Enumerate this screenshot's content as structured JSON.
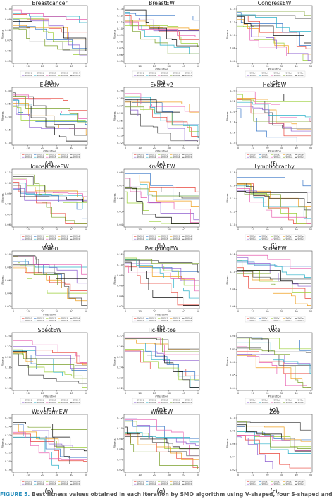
{
  "caption": {
    "label": "FIGURE 5.",
    "text": "Best fitness values obtained in each iteration by SMO algorithm using V-shaped, four S-shaped and four U-shaped"
  },
  "colors": [
    "#e8443a",
    "#3a78c8",
    "#9bcf3a",
    "#f0a020",
    "#4f4f4f",
    "#8e5fd0",
    "#2ab0c8",
    "#e860b0",
    "#7aa02a",
    "#111111"
  ],
  "chart_data": [
    {
      "title": "Breastcancer",
      "letter": "(a)",
      "type": "line",
      "xlabel": "",
      "ylabel": "Fitness",
      "xticks": [
        "0",
        "10",
        "20",
        "30",
        "40",
        "50"
      ],
      "yticks": [
        "0.05",
        "0.06",
        "0.07",
        "0.08",
        "0.09",
        "0.10"
      ],
      "legend": [
        "SMOv1",
        "SMOs1",
        "SMOs2",
        "SMOs3",
        "SMOs4",
        "SMOu1",
        "SMOu2",
        "SMOu3",
        "SMOu4",
        "SMOv2"
      ]
    },
    {
      "title": "BreastEW",
      "letter": "(b)",
      "type": "line",
      "xlabel": "#Iteration",
      "ylabel": "Fitness",
      "xticks": [
        "0",
        "10",
        "20",
        "30",
        "40",
        "50"
      ],
      "yticks": [
        "0.05",
        "0.06",
        "0.07",
        "0.08",
        "0.09",
        "0.10",
        "0.11",
        "0.12",
        "0.13"
      ],
      "legend": [
        "SMOv1",
        "SMOs1",
        "SMOs2",
        "SMOs3",
        "SMOs4",
        "SMOu1",
        "SMOu2",
        "SMOu3",
        "SMOu4",
        "SMOv2"
      ]
    },
    {
      "title": "CongressEW",
      "letter": "(c)",
      "type": "line",
      "xlabel": "#Iteration",
      "ylabel": "Fitness",
      "xticks": [
        "0",
        "10",
        "20",
        "30",
        "40",
        "50"
      ],
      "yticks": [
        "0.06",
        "0.08",
        "0.10",
        "0.12",
        "0.14"
      ],
      "legend": [
        "SMOv1",
        "SMOs1",
        "SMOs2",
        "SMOs3",
        "SMOs4",
        "SMOu1",
        "SMOu2",
        "SMOu3",
        "SMOu4",
        "SMOv2"
      ]
    },
    {
      "title": "Exactly",
      "letter": "(d)",
      "type": "line",
      "xlabel": "#Iteration",
      "ylabel": "Fitness",
      "xticks": [
        "0",
        "10",
        "20",
        "30",
        "40",
        "50"
      ],
      "yticks": [
        "0.10",
        "0.15",
        "0.20",
        "0.25",
        "0.30"
      ],
      "legend": [
        "SMOv1",
        "SMOs1",
        "SMOs2",
        "SMOs3",
        "SMOs4",
        "SMOu1",
        "SMOu2",
        "SMOu3",
        "SMOu4",
        "SMOv2"
      ]
    },
    {
      "title": "Exactly2",
      "letter": "(e)",
      "type": "line",
      "xlabel": "#Iteration",
      "ylabel": "Fitness",
      "xticks": [
        "0",
        "10",
        "20",
        "30",
        "40",
        "50"
      ],
      "yticks": [
        "0.22",
        "0.23",
        "0.24",
        "0.25",
        "0.26",
        "0.27",
        "0.28",
        "0.29"
      ],
      "legend": [
        "SMOv1",
        "SMOs1",
        "SMOs2",
        "SMOs3",
        "SMOs4",
        "SMOu1",
        "SMOu2",
        "SMOu3",
        "SMOu4",
        "SMOv2"
      ]
    },
    {
      "title": "HeartEW",
      "letter": "(f)",
      "type": "line",
      "xlabel": "#Iteration",
      "ylabel": "Fitness",
      "xticks": [
        "0",
        "10",
        "20",
        "30",
        "40",
        "50"
      ],
      "yticks": [
        "0.14",
        "0.16",
        "0.18",
        "0.20",
        "0.22",
        "0.24"
      ],
      "legend": [
        "SMOv1",
        "SMOs1",
        "SMOs2",
        "SMOs3",
        "SMOs4",
        "SMOu1",
        "SMOu2",
        "SMOu3",
        "SMOu4",
        "SMOv2"
      ]
    },
    {
      "title": "IonosphereEW",
      "letter": "(g)",
      "type": "line",
      "xlabel": "",
      "ylabel": "Fitness",
      "xticks": [
        "0",
        "10",
        "20",
        "30",
        "40",
        "50"
      ],
      "yticks": [
        "0.06",
        "0.07",
        "0.08",
        "0.09",
        "0.10",
        "0.11"
      ],
      "legend": [
        "SMOv1",
        "SMOs1",
        "SMOs2",
        "SMOs3",
        "SMOs4",
        "SMOu1",
        "SMOu2",
        "SMOu3",
        "SMOu4",
        "SMOv2"
      ]
    },
    {
      "title": "KrvskpEW",
      "letter": "(h)",
      "type": "line",
      "xlabel": "",
      "ylabel": "Fitness",
      "xticks": [
        "0",
        "10",
        "20",
        "30",
        "40",
        "50"
      ],
      "yticks": [
        "0.04",
        "0.05",
        "0.06",
        "0.07",
        "0.08"
      ],
      "legend": [
        "SMOv1",
        "SMOs1",
        "SMOs2",
        "SMOs3",
        "SMOs4",
        "SMOu1",
        "SMOu2",
        "SMOu3",
        "SMOu4",
        "SMOv2"
      ]
    },
    {
      "title": "Lymphography",
      "letter": "(i)",
      "type": "line",
      "xlabel": "",
      "ylabel": "Fitness",
      "xticks": [
        "0",
        "10",
        "20",
        "30",
        "40",
        "50"
      ],
      "yticks": [
        "0.10",
        "0.12",
        "0.14",
        "0.16",
        "0.18"
      ],
      "legend": [
        "SMOv1",
        "SMOs1",
        "SMOs2",
        "SMOs3",
        "SMOs4",
        "SMOu1",
        "SMOu2",
        "SMOu3",
        "SMOu4",
        "SMOv2"
      ]
    },
    {
      "title": "M-of-n",
      "letter": "(j)",
      "type": "line",
      "xlabel": "#Iteration",
      "ylabel": "Fitness",
      "xticks": [
        "0",
        "10",
        "20",
        "30",
        "40",
        "50"
      ],
      "yticks": [
        "0.02",
        "0.04",
        "0.06",
        "0.08",
        "0.10"
      ],
      "legend": [
        "SMOv1",
        "SMOs1",
        "SMOs2",
        "SMOs3",
        "SMOs4",
        "SMOu1",
        "SMOu2",
        "SMOu3",
        "SMOu4",
        "SMOv2"
      ]
    },
    {
      "title": "PenglungEW",
      "letter": "(k)",
      "type": "line",
      "xlabel": "#Iteration",
      "ylabel": "Fitness",
      "xticks": [
        "0",
        "10",
        "20",
        "30",
        "40",
        "50"
      ],
      "yticks": [
        "0.02",
        "0.04",
        "0.06",
        "0.08",
        "0.10",
        "0.12"
      ],
      "legend": [
        "SMOv1",
        "SMOs1",
        "SMOs2",
        "SMOs3",
        "SMOs4",
        "SMOu1",
        "SMOu2",
        "SMOu3",
        "SMOu4",
        "SMOv2"
      ]
    },
    {
      "title": "SonarEW",
      "letter": "(l)",
      "type": "line",
      "xlabel": "",
      "ylabel": "Fitness",
      "xticks": [
        "0",
        "10",
        "20",
        "30",
        "40",
        "50"
      ],
      "yticks": [
        "0.06",
        "0.08",
        "0.10",
        "0.12"
      ],
      "legend": [
        "SMOv1",
        "SMOs1",
        "SMOs2",
        "SMOs3",
        "SMOs4",
        "SMOu1",
        "SMOu2",
        "SMOu3",
        "SMOu4",
        "SMOv2"
      ]
    },
    {
      "title": "SpectEW",
      "letter": "(m)",
      "type": "line",
      "xlabel": "#Iteration",
      "ylabel": "Fitness",
      "xticks": [
        "0",
        "10",
        "20",
        "30",
        "40",
        "50"
      ],
      "yticks": [
        "0.14",
        "0.16",
        "0.18",
        "0.20",
        "0.22",
        "0.24"
      ],
      "legend": [
        "SMOv1",
        "SMOs1",
        "SMOs2",
        "SMOs3",
        "SMOs4",
        "SMOu1",
        "SMOu2",
        "SMOu3",
        "SMOu4",
        "SMOv2"
      ]
    },
    {
      "title": "Tic-tac-toe",
      "letter": "(n)",
      "type": "line",
      "xlabel": "#Iteration",
      "ylabel": "Fitness",
      "xticks": [
        "0",
        "10",
        "20",
        "30",
        "40",
        "50"
      ],
      "yticks": [
        "0.22",
        "0.23",
        "0.24",
        "0.25",
        "0.26",
        "0.27"
      ],
      "legend": [
        "SMOv1",
        "SMOs1",
        "SMOs2",
        "SMOs3",
        "SMOs4",
        "SMOu1",
        "SMOu2",
        "SMOu3",
        "SMOu4",
        "SMOv2"
      ]
    },
    {
      "title": "Vote",
      "letter": "(o)",
      "type": "line",
      "xlabel": "#Iteration",
      "ylabel": "Fitness",
      "xticks": [
        "0",
        "10",
        "20",
        "30",
        "40",
        "50"
      ],
      "yticks": [
        "0.04",
        "0.05",
        "0.06",
        "0.07",
        "0.08"
      ],
      "legend": [
        "SMOv1",
        "SMOs1",
        "SMOs2",
        "SMOs3",
        "SMOs4",
        "SMOu1",
        "SMOu2",
        "SMOu3",
        "SMOu4",
        "SMOv2"
      ]
    },
    {
      "title": "WaveformEW",
      "letter": "(p)",
      "type": "line",
      "xlabel": "",
      "ylabel": "Fitness",
      "xticks": [
        "0",
        "10",
        "20",
        "30",
        "40",
        "50"
      ],
      "yticks": [
        "0.19",
        "0.20",
        "0.21",
        "0.22",
        "0.23",
        "0.24",
        "0.25"
      ],
      "legend": [
        "SMOv1",
        "SMOs1",
        "SMOs2",
        "SMOs3",
        "SMOs4",
        "SMOu1",
        "SMOu2",
        "SMOu3",
        "SMOu4",
        "SMOv2"
      ]
    },
    {
      "title": "WineEW",
      "letter": "(q)",
      "type": "line",
      "xlabel": "",
      "ylabel": "Fitness",
      "xticks": [
        "0",
        "10",
        "20",
        "30",
        "40",
        "50"
      ],
      "yticks": [
        "0.02",
        "0.04",
        "0.06",
        "0.08",
        "0.10",
        "0.12"
      ],
      "legend": [
        "SMOv1",
        "SMOs1",
        "SMOs2",
        "SMOs3",
        "SMOs4",
        "SMOu1",
        "SMOu2",
        "SMOu3",
        "SMOu4",
        "SMOv2"
      ]
    },
    {
      "title": "Zoo",
      "letter": "(r)",
      "type": "line",
      "xlabel": "",
      "ylabel": "Fitness",
      "xticks": [
        "0",
        "10",
        "20",
        "30",
        "40",
        "50"
      ],
      "yticks": [
        "0.02",
        "0.04",
        "0.06",
        "0.08",
        "0.10"
      ],
      "legend": [
        "SMOv1",
        "SMOs1",
        "SMOs2",
        "SMOs3",
        "SMOs4",
        "SMOu1",
        "SMOu2",
        "SMOu3",
        "SMOu4",
        "SMOv2"
      ]
    }
  ]
}
